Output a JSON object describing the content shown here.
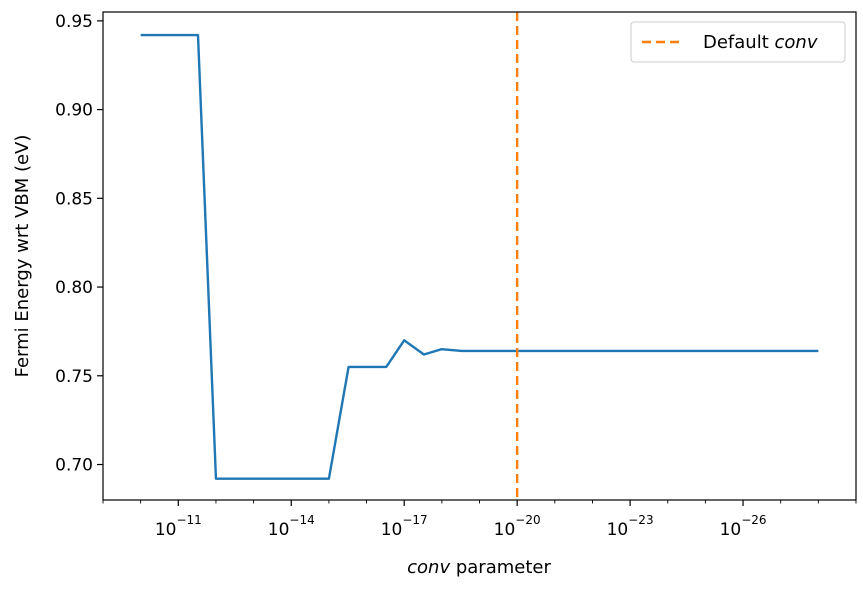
{
  "chart_data": {
    "type": "line",
    "xscale": "log",
    "x_reversed": true,
    "xlim": [
      1e-09,
      1e-29
    ],
    "ylim": [
      0.68,
      0.955
    ],
    "xlabel_italic": "conv",
    "xlabel_rest": " parameter",
    "ylabel": "Fermi Energy wrt VBM (eV)",
    "yticks": [
      {
        "value": 0.7,
        "label": "0.70"
      },
      {
        "value": 0.75,
        "label": "0.75"
      },
      {
        "value": 0.8,
        "label": "0.80"
      },
      {
        "value": 0.85,
        "label": "0.85"
      },
      {
        "value": 0.9,
        "label": "0.90"
      },
      {
        "value": 0.95,
        "label": "0.95"
      }
    ],
    "xticks": [
      {
        "value": 1e-11,
        "base": "10",
        "exp": "−11"
      },
      {
        "value": 1e-14,
        "base": "10",
        "exp": "−14"
      },
      {
        "value": 1e-17,
        "base": "10",
        "exp": "−17"
      },
      {
        "value": 1e-20,
        "base": "10",
        "exp": "−20"
      },
      {
        "value": 1e-23,
        "base": "10",
        "exp": "−23"
      },
      {
        "value": 1e-26,
        "base": "10",
        "exp": "−26"
      }
    ],
    "series": [
      {
        "color": "#1f77b4",
        "x": [
          1e-10,
          3e-11,
          1e-11,
          3e-12,
          1e-12,
          3e-13,
          1e-13,
          3e-14,
          1e-14,
          3e-15,
          1e-15,
          3e-16,
          1e-16,
          3e-17,
          1e-17,
          3e-18,
          1e-18,
          3e-19,
          1e-19,
          3e-20,
          1e-20,
          1e-21,
          1e-22,
          1e-23,
          1e-24,
          1e-25,
          1e-26,
          1e-27,
          1e-28
        ],
        "y": [
          0.942,
          0.942,
          0.942,
          0.942,
          0.692,
          0.692,
          0.692,
          0.692,
          0.692,
          0.692,
          0.692,
          0.755,
          0.755,
          0.755,
          0.77,
          0.762,
          0.765,
          0.764,
          0.764,
          0.764,
          0.764,
          0.764,
          0.764,
          0.764,
          0.764,
          0.764,
          0.764,
          0.764,
          0.764
        ]
      }
    ],
    "vline": {
      "x": 1e-20,
      "color": "#ff7f0e",
      "dash": "dashed"
    },
    "legend": {
      "position": "top-right",
      "entries": [
        {
          "text_plain": "Default ",
          "text_italic": "conv",
          "color": "#ff7f0e",
          "style": "dashed"
        }
      ]
    },
    "grid": false
  }
}
